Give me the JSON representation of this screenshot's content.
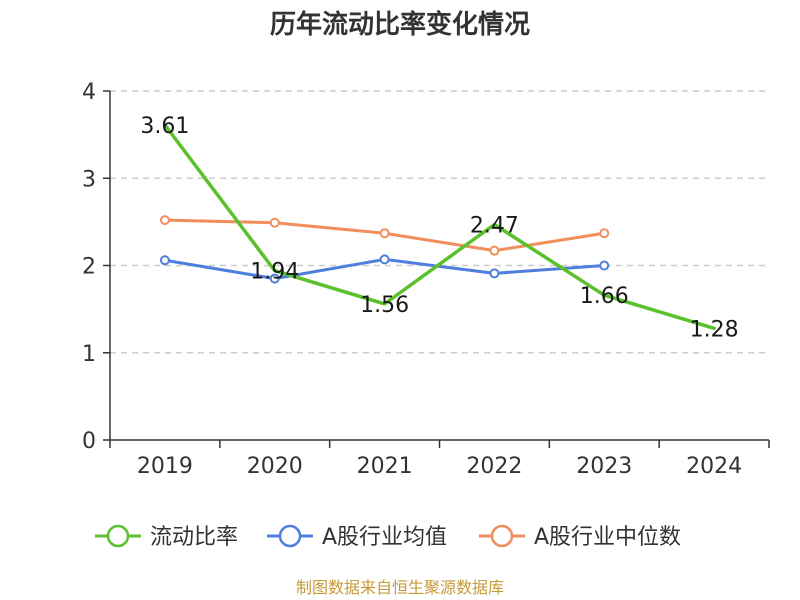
{
  "chart_data": {
    "type": "line",
    "title": "历年流动比率变化情况",
    "categories": [
      "2019",
      "2020",
      "2021",
      "2022",
      "2023",
      "2024"
    ],
    "ylim": [
      0,
      4
    ],
    "yticks": [
      0,
      1,
      2,
      3,
      4
    ],
    "grid": true,
    "legend_position": "bottom",
    "series": [
      {
        "name": "流动比率",
        "color": "#5ac02c",
        "values": [
          3.61,
          1.94,
          1.56,
          2.47,
          1.66,
          1.28
        ],
        "labels": [
          "3.61",
          "1.94",
          "1.56",
          "2.47",
          "1.66",
          "1.28"
        ],
        "show_labels": true
      },
      {
        "name": "A股行业均值",
        "color": "#4f7fdc",
        "values": [
          2.06,
          1.85,
          2.07,
          1.91,
          2.0,
          null
        ],
        "show_labels": false
      },
      {
        "name": "A股行业中位数",
        "color": "#f28e5c",
        "values": [
          2.52,
          2.49,
          2.37,
          2.17,
          2.37,
          null
        ],
        "show_labels": false
      }
    ]
  },
  "source": {
    "text": "制图数据来自恒生聚源数据库",
    "color": "#c79a3a"
  }
}
